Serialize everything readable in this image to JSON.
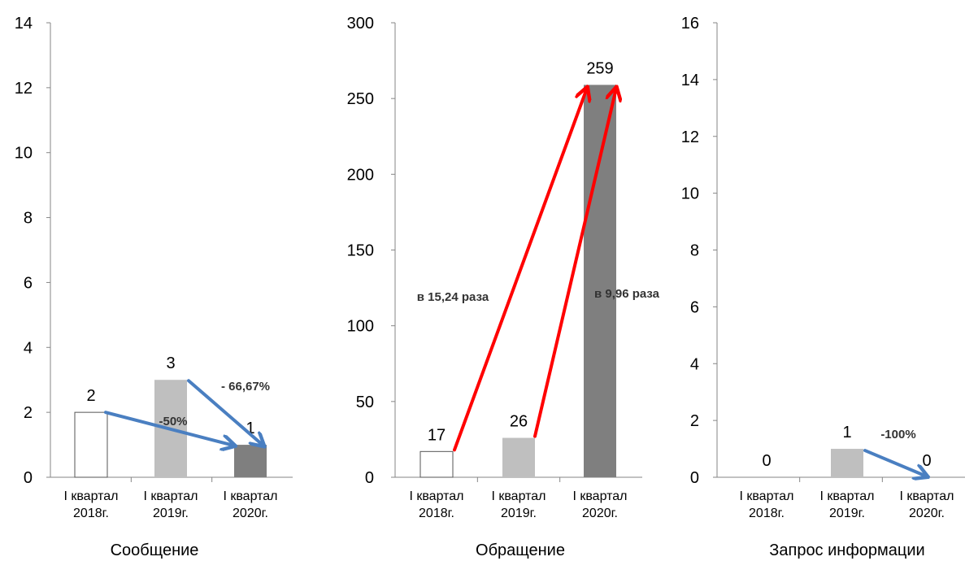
{
  "chart_data": [
    {
      "type": "bar",
      "title": "Сообщение",
      "categories": [
        [
          "I квартал",
          "2018г."
        ],
        [
          "I квартал",
          "2019г."
        ],
        [
          "I квартал",
          "2020г."
        ]
      ],
      "values": [
        2,
        3,
        1
      ],
      "ylim": [
        0,
        14
      ],
      "yticks": [
        0,
        2,
        4,
        6,
        8,
        10,
        12,
        14
      ],
      "bar_colors": [
        "#ffffff",
        "#bfbfbf",
        "#7f7f7f"
      ],
      "annotations": [
        {
          "text": "-50%",
          "from": 0,
          "to": 2,
          "color": "#4a7fc1"
        },
        {
          "text": "- 66,67%",
          "from": 1,
          "to": 2,
          "color": "#4a7fc1"
        }
      ]
    },
    {
      "type": "bar",
      "title": "Обращение",
      "categories": [
        [
          "I квартал",
          "2018г."
        ],
        [
          "I квартал",
          "2019г."
        ],
        [
          "I квартал",
          "2020г."
        ]
      ],
      "values": [
        17,
        26,
        259
      ],
      "ylim": [
        0,
        300
      ],
      "yticks": [
        0,
        50,
        100,
        150,
        200,
        250,
        300
      ],
      "bar_colors": [
        "#ffffff",
        "#bfbfbf",
        "#7f7f7f"
      ],
      "annotations": [
        {
          "text": "в 15,24 раза",
          "from": 0,
          "to": 2,
          "color": "#ff0000"
        },
        {
          "text": "в 9,96 раза",
          "from": 1,
          "to": 2,
          "color": "#ff0000"
        }
      ]
    },
    {
      "type": "bar",
      "title": "Запрос информации",
      "categories": [
        [
          "I квартал",
          "2018г."
        ],
        [
          "I квартал",
          "2019г."
        ],
        [
          "I квартал",
          "2020г."
        ]
      ],
      "values": [
        0,
        1,
        0
      ],
      "ylim": [
        0,
        16
      ],
      "yticks": [
        0,
        2,
        4,
        6,
        8,
        10,
        12,
        14,
        16
      ],
      "bar_colors": [
        "#ffffff",
        "#bfbfbf",
        "#7f7f7f"
      ],
      "annotations": [
        {
          "text": "-100%",
          "from": 1,
          "to": 2,
          "color": "#4a7fc1"
        }
      ]
    }
  ]
}
